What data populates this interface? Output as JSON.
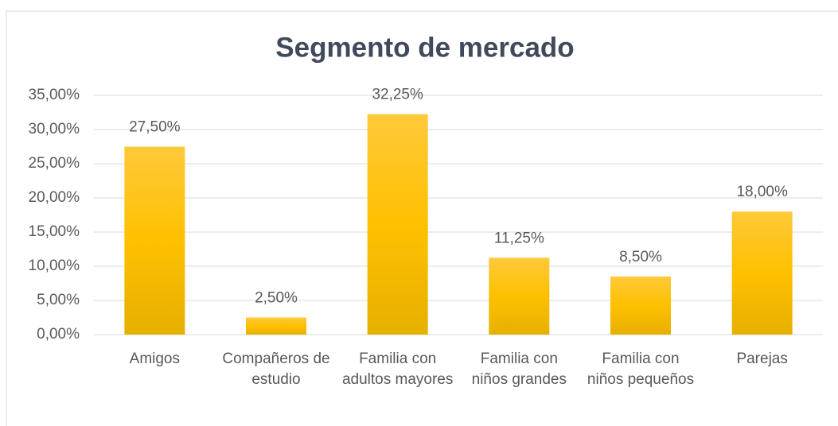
{
  "chart_data": {
    "type": "bar",
    "title": "Segmento de mercado",
    "categories": [
      "Amigos",
      "Compañeros de estudio",
      "Familia con adultos mayores",
      "Familia con niños grandes",
      "Familia con niños pequeños",
      "Parejas"
    ],
    "values": [
      27.5,
      2.5,
      32.25,
      11.25,
      8.5,
      18
    ],
    "value_labels": [
      "27,50%",
      "2,50%",
      "32,25%",
      "11,25%",
      "8,50%",
      "18,00%"
    ],
    "color": "#ffc000",
    "ylim": [
      0,
      35
    ],
    "yticks": [
      {
        "value": 0,
        "label": "0,00%"
      },
      {
        "value": 5,
        "label": "5,00%"
      },
      {
        "value": 10,
        "label": "10,00%"
      },
      {
        "value": 15,
        "label": "15,00%"
      },
      {
        "value": 20,
        "label": "20,00%"
      },
      {
        "value": 25,
        "label": "25,00%"
      },
      {
        "value": 30,
        "label": "30,00%"
      },
      {
        "value": 35,
        "label": "35,00%"
      }
    ],
    "grid": true
  }
}
